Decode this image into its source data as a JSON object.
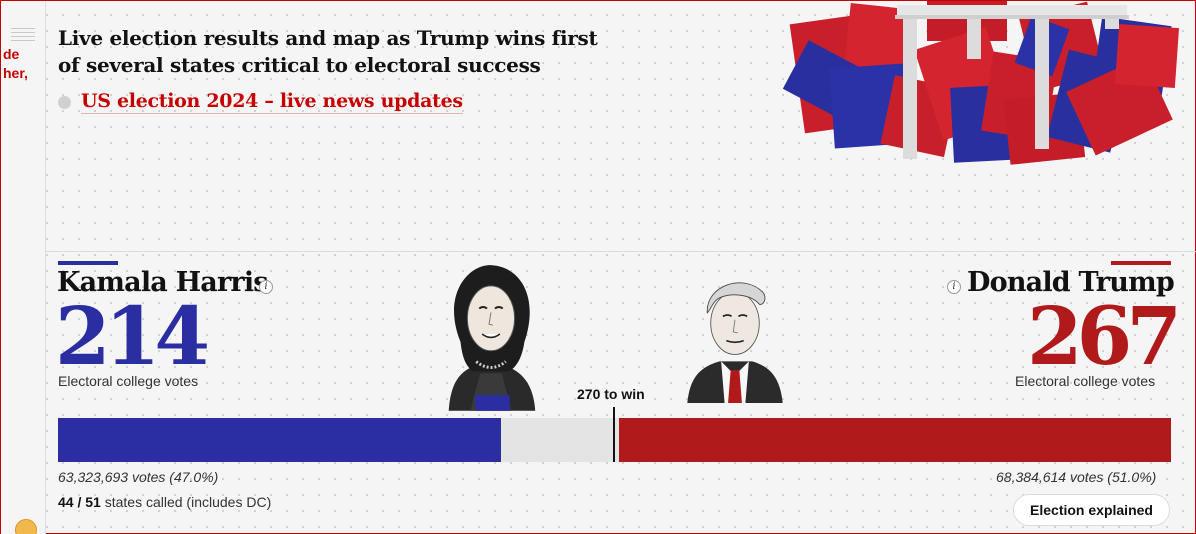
{
  "sidebar": {
    "snippet_lines": [
      "de",
      "her,"
    ]
  },
  "headline": "Live election results and map as Trump wins first of several states critical to electoral success",
  "live_link": {
    "label": "US election 2024 – live news updates"
  },
  "harris": {
    "name": "Kamala Harris",
    "electoral_votes": "214",
    "ev_label": "Electoral college votes",
    "popular_votes": "63,323,693 votes (47.0%)",
    "color": "#2a2ea0",
    "info_glyph": "i"
  },
  "trump": {
    "name": "Donald Trump",
    "electoral_votes": "267",
    "ev_label": "Electoral college votes",
    "popular_votes": "68,384,614 votes (51.0%)",
    "color": "#b01a1a",
    "info_glyph": "i"
  },
  "threshold": {
    "label": "270 to win",
    "value": 270,
    "total": 538
  },
  "states_called": {
    "called": "44",
    "separator": "/",
    "total": "51",
    "suffix": "states called (includes DC)"
  },
  "buttons": {
    "election_explained": "Election explained"
  },
  "colors": {
    "accent_red": "#c70000",
    "background": "#f5f5f5"
  }
}
